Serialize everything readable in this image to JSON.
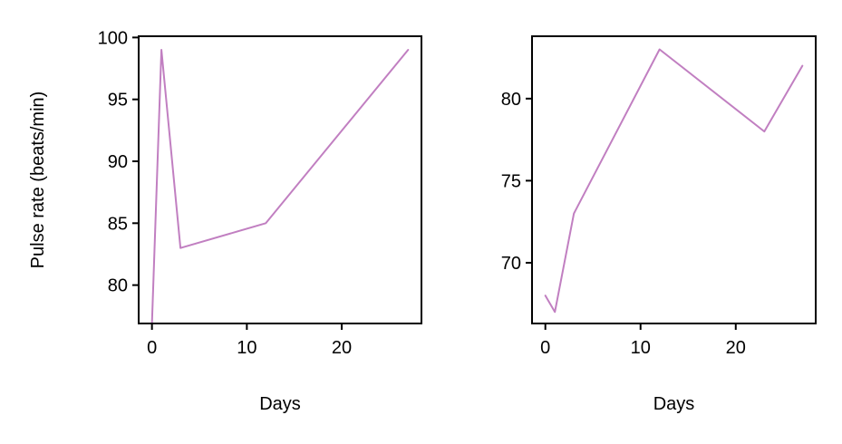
{
  "chart_data": [
    {
      "type": "line",
      "xlabel": "Days",
      "ylabel": "Pulse rate (beats/min)",
      "xlim": [
        -1.4,
        28.4
      ],
      "ylim": [
        76.9,
        100.1
      ],
      "xticks": [
        0,
        10,
        20
      ],
      "yticks": [
        80,
        85,
        90,
        95,
        100
      ],
      "grid": false,
      "series": [
        {
          "x": [
            0,
            1,
            3,
            12,
            27
          ],
          "y": [
            77,
            99,
            83,
            85,
            99
          ],
          "color": "#c17fc1"
        }
      ]
    },
    {
      "type": "line",
      "xlabel": "Days",
      "ylabel": "",
      "xlim": [
        -1.4,
        28.4
      ],
      "ylim": [
        66.3,
        83.8
      ],
      "xticks": [
        0,
        10,
        20
      ],
      "yticks": [
        70,
        75,
        80
      ],
      "grid": false,
      "series": [
        {
          "x": [
            0,
            1,
            3,
            12,
            23,
            27
          ],
          "y": [
            68,
            67,
            73,
            83,
            78,
            82
          ],
          "color": "#c17fc1"
        }
      ]
    }
  ]
}
